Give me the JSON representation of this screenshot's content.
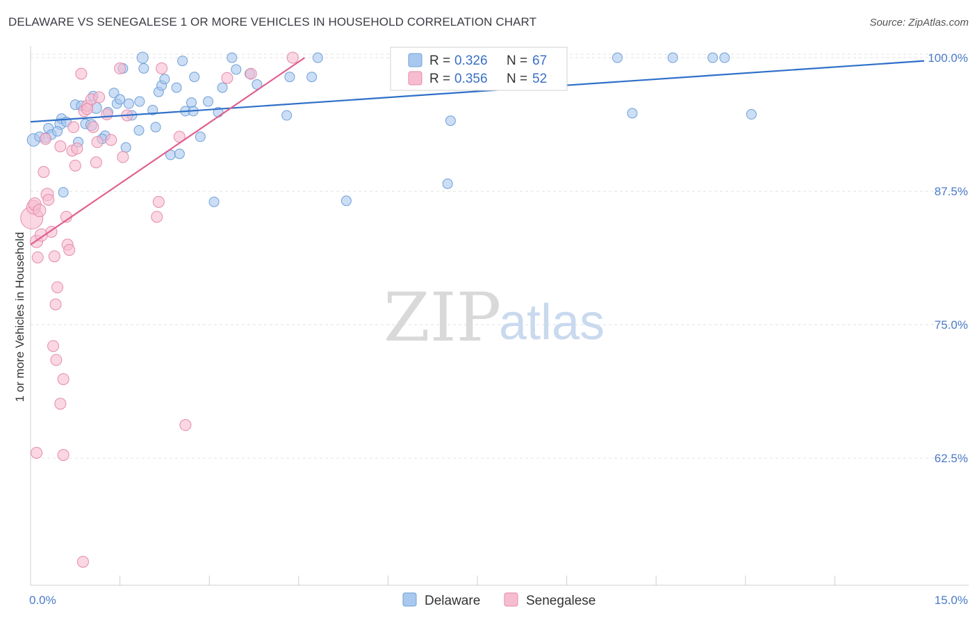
{
  "title": "DELAWARE VS SENEGALESE 1 OR MORE VEHICLES IN HOUSEHOLD CORRELATION CHART",
  "source": "Source: ZipAtlas.com",
  "watermark": {
    "zip": "ZIP",
    "atlas": "atlas"
  },
  "colors": {
    "delaware_fill": "#a9c8ef",
    "delaware_stroke": "#6f9fd8",
    "delaware_line": "#2f6fc8",
    "senegalese_fill": "#f6bdd0",
    "senegalese_stroke": "#e58aa9",
    "senegalese_line": "#e06090",
    "tick_blue": "#4a7ac8",
    "grid": "#e2e2e2"
  },
  "stats_legend": [
    {
      "r_label": "R =",
      "r_value": "0.326",
      "n_label": "N =",
      "n_value": "67"
    },
    {
      "r_label": "R =",
      "r_value": "0.356",
      "n_label": "N =",
      "n_value": "52"
    }
  ],
  "chart_data": {
    "type": "scatter",
    "title": "DELAWARE VS SENEGALESE 1 OR MORE VEHICLES IN HOUSEHOLD CORRELATION CHART",
    "xlabel": "",
    "ylabel": "1 or more Vehicles in Household",
    "xlim": [
      0,
      15
    ],
    "ylim": [
      50.6,
      101.5
    ],
    "x_tick_labels": [
      {
        "value": 0,
        "label": "0.0%"
      },
      {
        "value": 15,
        "label": "15.0%"
      }
    ],
    "y_tick_labels": [
      {
        "value": 100,
        "label": "100.0%"
      },
      {
        "value": 87.5,
        "label": "87.5%"
      },
      {
        "value": 75,
        "label": "75.0%"
      },
      {
        "value": 62.5,
        "label": "62.5%"
      }
    ],
    "x_minor_ticks": [
      1.5,
      3.0,
      4.5,
      6.0,
      7.5,
      9.0,
      10.5,
      12.0,
      13.5
    ],
    "grid": true,
    "legend_position": "bottom-center",
    "series": [
      {
        "name": "Delaware",
        "trendline": {
          "x0": 0,
          "y0": 94.0,
          "x1": 15,
          "y1": 99.7
        },
        "points": [
          [
            0.05,
            92.3,
            9
          ],
          [
            0.15,
            92.6,
            7
          ],
          [
            0.3,
            93.4,
            7
          ],
          [
            0.35,
            92.8,
            7
          ],
          [
            0.25,
            92.5,
            7
          ],
          [
            0.5,
            93.8,
            8
          ],
          [
            0.45,
            93.1,
            7
          ],
          [
            0.55,
            87.4,
            7
          ],
          [
            0.52,
            94.3,
            7
          ],
          [
            0.6,
            94.0,
            7
          ],
          [
            0.75,
            95.6,
            7
          ],
          [
            0.85,
            95.5,
            7
          ],
          [
            0.8,
            92.1,
            7
          ],
          [
            0.92,
            93.8,
            7
          ],
          [
            1.05,
            96.4,
            7
          ],
          [
            1.1,
            95.3,
            8
          ],
          [
            1.02,
            93.7,
            8
          ],
          [
            1.25,
            92.7,
            7
          ],
          [
            1.2,
            92.4,
            7
          ],
          [
            1.3,
            94.9,
            7
          ],
          [
            1.4,
            96.7,
            7
          ],
          [
            1.45,
            95.7,
            7
          ],
          [
            1.5,
            96.1,
            7
          ],
          [
            1.55,
            99.0,
            7
          ],
          [
            1.6,
            91.6,
            7
          ],
          [
            1.65,
            95.7,
            7
          ],
          [
            1.7,
            94.6,
            7
          ],
          [
            1.82,
            93.2,
            7
          ],
          [
            1.83,
            95.9,
            7
          ],
          [
            1.88,
            100.0,
            8
          ],
          [
            1.9,
            99.0,
            7
          ],
          [
            2.05,
            95.1,
            7
          ],
          [
            2.1,
            93.5,
            7
          ],
          [
            2.15,
            96.8,
            7
          ],
          [
            2.2,
            97.4,
            7
          ],
          [
            2.25,
            98.0,
            7
          ],
          [
            2.35,
            90.9,
            7
          ],
          [
            2.45,
            97.2,
            7
          ],
          [
            2.5,
            91.0,
            7
          ],
          [
            2.55,
            99.7,
            7
          ],
          [
            2.6,
            95.0,
            7
          ],
          [
            2.7,
            95.8,
            7
          ],
          [
            2.73,
            95.0,
            7
          ],
          [
            2.75,
            98.2,
            7
          ],
          [
            2.85,
            92.6,
            7
          ],
          [
            2.98,
            95.9,
            7
          ],
          [
            3.08,
            86.5,
            7
          ],
          [
            3.15,
            94.9,
            7
          ],
          [
            3.22,
            97.2,
            7
          ],
          [
            3.38,
            100.0,
            7
          ],
          [
            3.45,
            98.9,
            7
          ],
          [
            3.68,
            98.5,
            7
          ],
          [
            3.8,
            97.5,
            7
          ],
          [
            4.3,
            94.6,
            7
          ],
          [
            4.35,
            98.2,
            7
          ],
          [
            4.72,
            98.2,
            7
          ],
          [
            4.82,
            100.0,
            7
          ],
          [
            5.3,
            86.6,
            7
          ],
          [
            7.0,
            88.2,
            7
          ],
          [
            7.05,
            94.1,
            7
          ],
          [
            8.1,
            98.4,
            7
          ],
          [
            9.85,
            100.0,
            7
          ],
          [
            10.1,
            94.8,
            7
          ],
          [
            10.78,
            100.0,
            7
          ],
          [
            11.45,
            100.0,
            7
          ],
          [
            11.65,
            100.0,
            7
          ],
          [
            12.1,
            94.7,
            7
          ]
        ]
      },
      {
        "name": "Senegalese",
        "trendline": {
          "x0": 0,
          "y0": 82.5,
          "x1": 4.6,
          "y1": 100.0
        },
        "points": [
          [
            0.02,
            85.0,
            16
          ],
          [
            0.05,
            86.0,
            10
          ],
          [
            0.07,
            86.3,
            9
          ],
          [
            0.1,
            82.8,
            9
          ],
          [
            0.12,
            81.3,
            8
          ],
          [
            0.15,
            85.7,
            9
          ],
          [
            0.18,
            83.4,
            9
          ],
          [
            0.22,
            89.3,
            8
          ],
          [
            0.25,
            92.4,
            8
          ],
          [
            0.28,
            87.2,
            9
          ],
          [
            0.3,
            86.7,
            8
          ],
          [
            0.35,
            83.7,
            8
          ],
          [
            0.4,
            81.4,
            8
          ],
          [
            0.45,
            78.5,
            8
          ],
          [
            0.42,
            76.9,
            8
          ],
          [
            0.38,
            73.0,
            8
          ],
          [
            0.43,
            71.7,
            8
          ],
          [
            0.55,
            69.9,
            8
          ],
          [
            0.5,
            67.6,
            8
          ],
          [
            0.55,
            62.8,
            8
          ],
          [
            0.1,
            63.0,
            8
          ],
          [
            0.5,
            91.7,
            8
          ],
          [
            0.6,
            85.1,
            8
          ],
          [
            0.62,
            82.5,
            8
          ],
          [
            0.65,
            82.0,
            8
          ],
          [
            0.7,
            91.3,
            8
          ],
          [
            0.72,
            93.5,
            8
          ],
          [
            0.75,
            89.9,
            8
          ],
          [
            0.78,
            91.5,
            8
          ],
          [
            0.85,
            98.5,
            8
          ],
          [
            0.9,
            95.0,
            8
          ],
          [
            0.95,
            95.5,
            8
          ],
          [
            1.02,
            96.1,
            8
          ],
          [
            1.05,
            93.5,
            8
          ],
          [
            1.1,
            90.2,
            8
          ],
          [
            1.12,
            92.1,
            8
          ],
          [
            1.15,
            96.3,
            8
          ],
          [
            1.28,
            94.7,
            8
          ],
          [
            1.35,
            92.3,
            8
          ],
          [
            1.5,
            99.0,
            8
          ],
          [
            1.55,
            90.7,
            8
          ],
          [
            1.62,
            94.6,
            8
          ],
          [
            2.15,
            86.5,
            8
          ],
          [
            2.12,
            85.1,
            8
          ],
          [
            2.2,
            99.0,
            8
          ],
          [
            2.5,
            92.6,
            8
          ],
          [
            2.6,
            65.6,
            8
          ],
          [
            3.3,
            98.1,
            8
          ],
          [
            3.7,
            98.5,
            8
          ],
          [
            4.4,
            100.0,
            8
          ],
          [
            0.88,
            52.8,
            8
          ],
          [
            0.95,
            95.2,
            8
          ]
        ]
      }
    ]
  }
}
